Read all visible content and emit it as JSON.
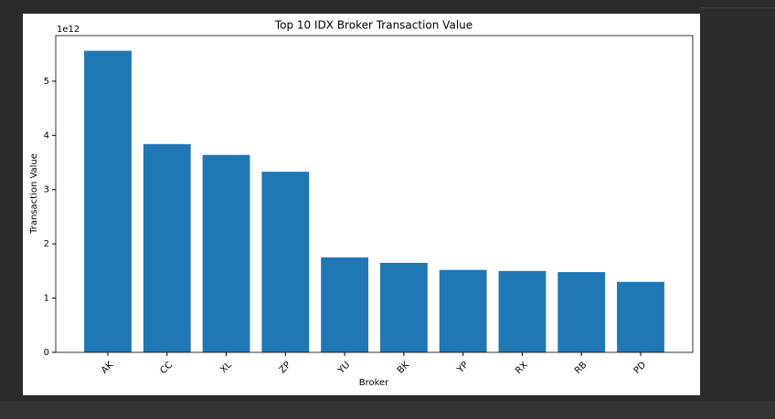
{
  "chart_data": {
    "type": "bar",
    "title": "Top 10 IDX Broker Transaction Value",
    "x_label": "Broker",
    "y_label": "Transaction Value",
    "offset_label": "1e12",
    "categories": [
      "AK",
      "CC",
      "XL",
      "ZP",
      "YU",
      "BK",
      "YP",
      "RX",
      "RB",
      "PD"
    ],
    "values": [
      5.56,
      3.84,
      3.64,
      3.33,
      1.75,
      1.65,
      1.52,
      1.5,
      1.48,
      1.3
    ],
    "color": "#1f77b4",
    "ylim": [
      0,
      5.84
    ],
    "yticks": [
      0,
      1,
      2,
      3,
      4,
      5
    ],
    "grid": false
  }
}
